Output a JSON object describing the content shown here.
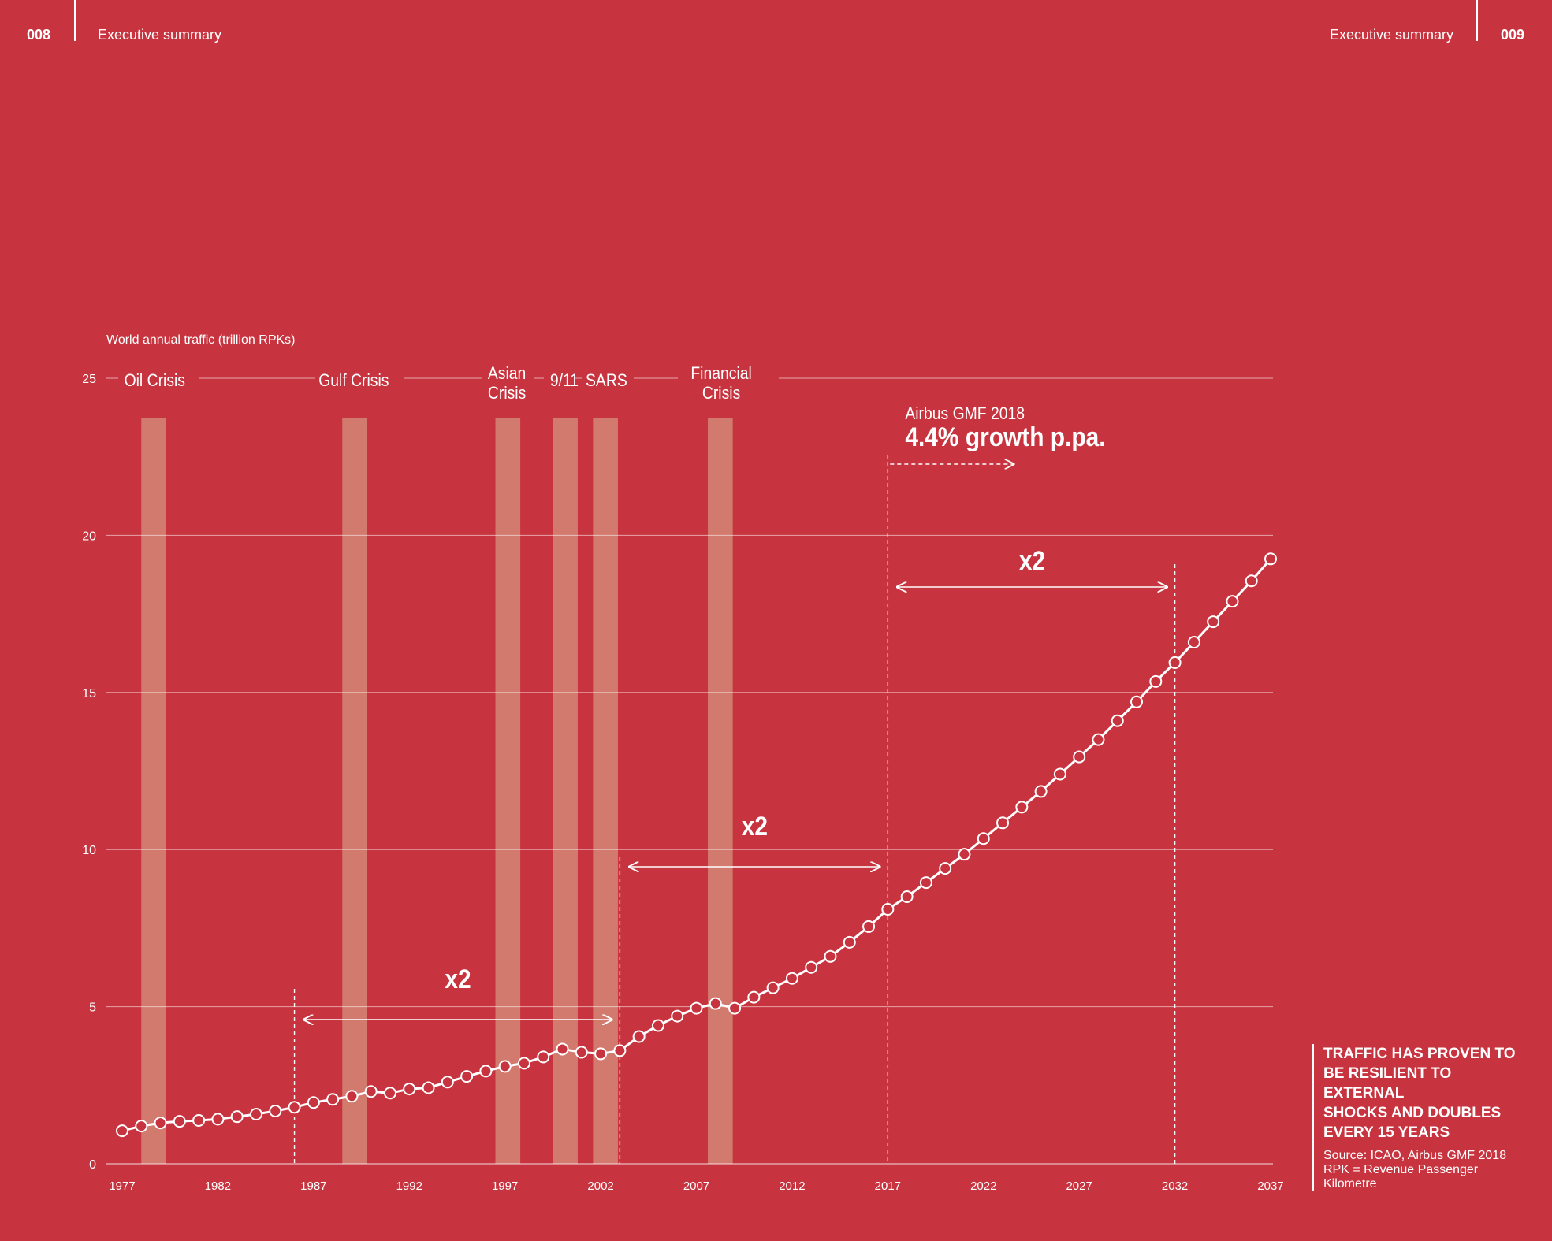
{
  "header": {
    "left_page": "008",
    "left_section": "Executive summary",
    "right_section": "Executive summary",
    "right_page": "009"
  },
  "colors": {
    "background": "#C7343F",
    "foreground": "#FFFFFF",
    "crisis_band": "#D37A6E"
  },
  "note": {
    "title_lines": [
      "TRAFFIC HAS PROVEN TO",
      "BE RESILIENT TO EXTERNAL",
      "SHOCKS AND DOUBLES",
      "EVERY 15 YEARS"
    ],
    "source_lines": [
      "Source: ICAO, Airbus GMF 2018",
      "RPK = Revenue Passenger",
      "Kilometre"
    ]
  },
  "chart_data": {
    "type": "line",
    "ylabel": "World annual traffic (trillion RPKs)",
    "ylim": [
      0,
      25
    ],
    "y_ticks": [
      0,
      5,
      10,
      15,
      20,
      25
    ],
    "xlim": [
      1977,
      2037
    ],
    "x_ticks": [
      1977,
      1982,
      1987,
      1992,
      1997,
      2002,
      2007,
      2012,
      2017,
      2022,
      2027,
      2032,
      2037
    ],
    "grid": true,
    "series": [
      {
        "x": [
          1977,
          1978,
          1979,
          1980,
          1981,
          1982,
          1983,
          1984,
          1985,
          1986,
          1987,
          1988,
          1989,
          1990,
          1991,
          1992,
          1993,
          1994,
          1995,
          1996,
          1997,
          1998,
          1999,
          2000,
          2001,
          2002,
          2003,
          2004,
          2005,
          2006,
          2007,
          2008,
          2009,
          2010,
          2011,
          2012,
          2013,
          2014,
          2015,
          2016,
          2017,
          2018,
          2019,
          2020,
          2021,
          2022,
          2023,
          2024,
          2025,
          2026,
          2027,
          2028,
          2029,
          2030,
          2031,
          2032,
          2033,
          2034,
          2035,
          2036,
          2037
        ],
        "y": [
          1.05,
          1.2,
          1.3,
          1.35,
          1.38,
          1.42,
          1.5,
          1.58,
          1.68,
          1.8,
          1.95,
          2.05,
          2.15,
          2.3,
          2.25,
          2.38,
          2.42,
          2.6,
          2.78,
          2.95,
          3.1,
          3.2,
          3.4,
          3.65,
          3.55,
          3.5,
          3.6,
          4.05,
          4.4,
          4.7,
          4.95,
          5.1,
          4.95,
          5.3,
          5.6,
          5.9,
          6.25,
          6.6,
          7.05,
          7.55,
          8.1,
          8.5,
          8.95,
          9.4,
          9.85,
          10.35,
          10.85,
          11.35,
          11.85,
          12.4,
          12.95,
          13.5,
          14.1,
          14.7,
          15.35,
          15.95,
          16.6,
          17.25,
          17.9,
          18.55,
          19.25
        ]
      }
    ],
    "crisis_bands": [
      {
        "start": 1978.0,
        "end": 1979.3
      },
      {
        "start": 1988.5,
        "end": 1989.8
      },
      {
        "start": 1996.5,
        "end": 1997.8
      },
      {
        "start": 1999.5,
        "end": 2000.8
      },
      {
        "start": 2001.6,
        "end": 2002.9
      },
      {
        "start": 2007.6,
        "end": 2008.9
      }
    ],
    "crisis_labels": [
      {
        "lines": [
          "Oil Crisis"
        ],
        "x": 1978.7
      },
      {
        "lines": [
          "Gulf Crisis"
        ],
        "x": 1989.1
      },
      {
        "lines": [
          "Asian",
          "Crisis"
        ],
        "x": 1997.1
      },
      {
        "lines": [
          "9/11"
        ],
        "x": 2000.1
      },
      {
        "lines": [
          "SARS"
        ],
        "x": 2002.3
      },
      {
        "lines": [
          "Financial",
          "Crisis"
        ],
        "x": 2008.3
      }
    ],
    "doubling_periods": [
      {
        "label": "x2",
        "start": 1986,
        "end": 2003
      },
      {
        "label": "x2",
        "start": 2003,
        "end": 2017
      },
      {
        "label": "x2",
        "start": 2017,
        "end": 2032
      }
    ],
    "forecast_annotation": {
      "line1": "Airbus GMF 2018",
      "line2": "4.4% growth p.pa.",
      "from_year": 2017
    }
  }
}
